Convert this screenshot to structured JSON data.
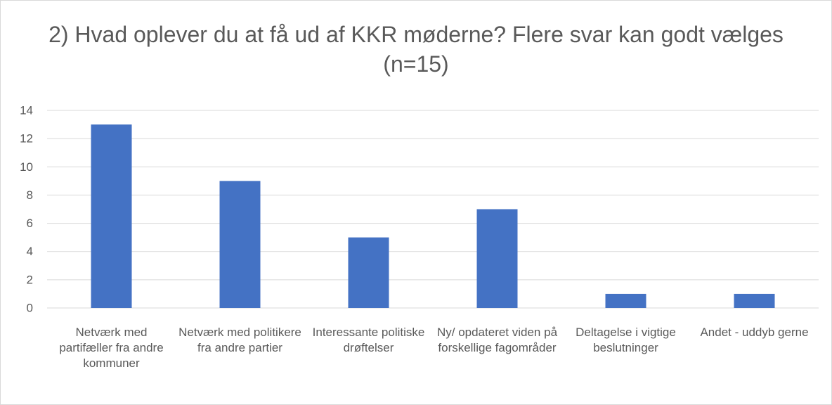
{
  "chart_data": {
    "type": "bar",
    "title": "2) Hvad oplever du at få ud af KKR møderne? Flere svar kan godt vælges (n=15)",
    "categories": [
      "Netværk med partifæller fra andre kommuner",
      "Netværk med politikere fra andre partier",
      "Interessante politiske drøftelser",
      "Ny/ opdateret viden på forskellige fagområder",
      "Deltagelse i vigtige beslutninger",
      "Andet - uddyb gerne"
    ],
    "values": [
      13,
      9,
      5,
      7,
      1,
      1
    ],
    "color": "#4472c4",
    "ylim": [
      0,
      14
    ],
    "yticks": [
      0,
      2,
      4,
      6,
      8,
      10,
      12,
      14
    ],
    "grid": true
  }
}
